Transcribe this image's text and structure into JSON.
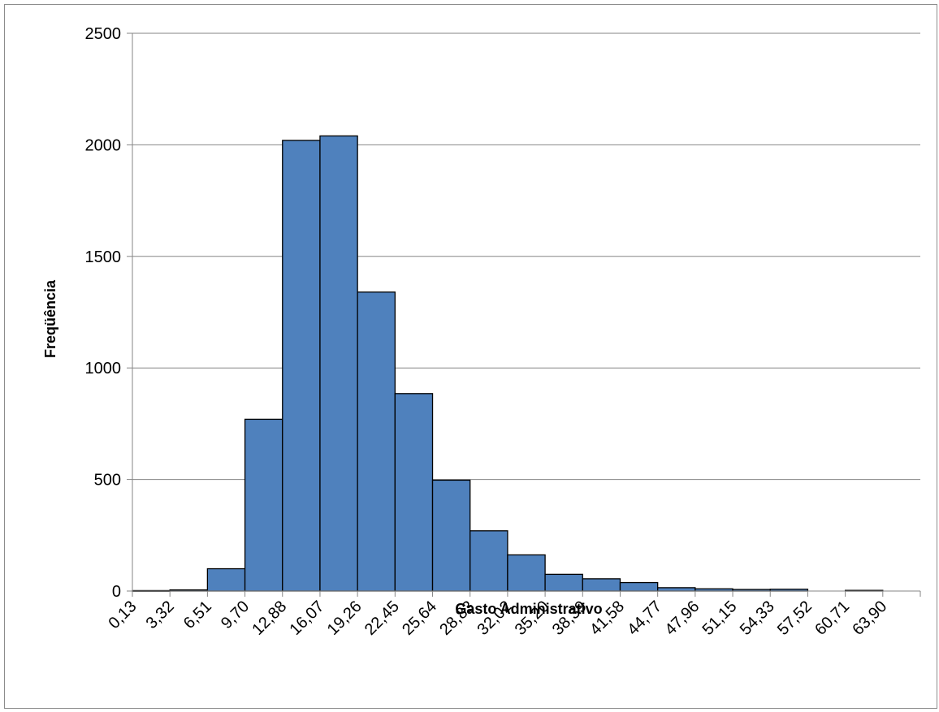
{
  "chart_data": {
    "type": "bar",
    "title": "",
    "xlabel": "Gasto Administrativo",
    "ylabel": "Freqüência",
    "ylim": [
      0,
      2500
    ],
    "yticks": [
      "0",
      "500",
      "1000",
      "1500",
      "2000",
      "2500"
    ],
    "categories": [
      "0,13",
      "3,32",
      "6,51",
      "9,70",
      "12,88",
      "16,07",
      "19,26",
      "22,45",
      "25,64",
      "28,83",
      "32,02",
      "35,20",
      "38,39",
      "41,58",
      "44,77",
      "47,96",
      "51,15",
      "54,33",
      "57,52",
      "60,71",
      "63,90"
    ],
    "values": [
      2,
      5,
      100,
      770,
      2020,
      2040,
      1340,
      885,
      497,
      270,
      162,
      75,
      55,
      38,
      15,
      10,
      7,
      8,
      0,
      3,
      0
    ],
    "grid": true,
    "legend": "none",
    "bar_color": "#4f81bd",
    "bar_edge_color": "#000000",
    "grid_color": "#868686"
  }
}
